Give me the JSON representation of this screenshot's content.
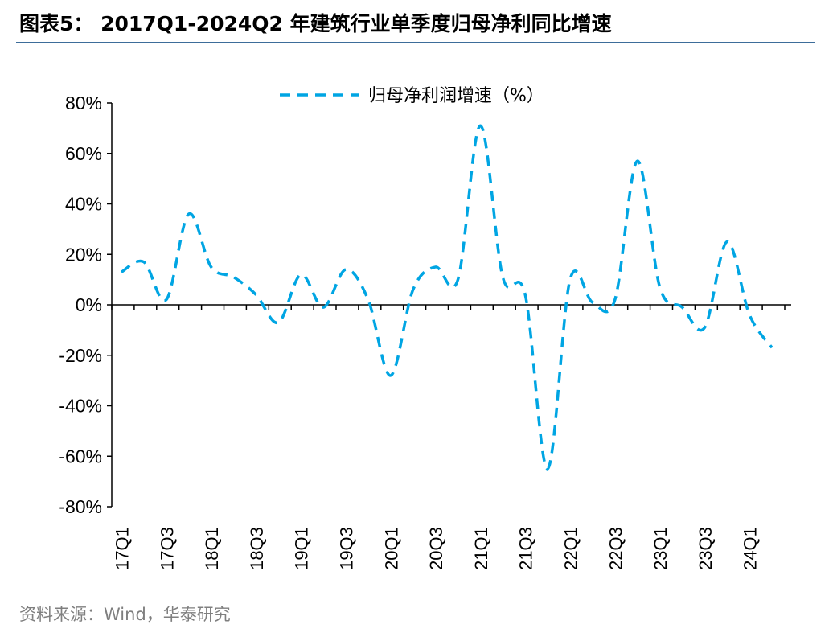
{
  "title": "图表5：  2017Q1-2024Q2 年建筑行业单季度归母净利同比增速",
  "source": "资料来源：Wind，华泰研究",
  "colors": {
    "series": "#00a5e3",
    "axis": "#000000",
    "rule": "#3d6d9a",
    "source_text": "#7f7f7f"
  },
  "chart_data": {
    "type": "line",
    "title": "",
    "xlabel": "",
    "ylabel": "",
    "ylim": [
      -80,
      80
    ],
    "y_ticks": [
      "80%",
      "60%",
      "40%",
      "20%",
      "0%",
      "-20%",
      "-40%",
      "-60%",
      "-80%"
    ],
    "y_tick_values": [
      80,
      60,
      40,
      20,
      0,
      -20,
      -40,
      -60,
      -80
    ],
    "grid": false,
    "legend": "top-center",
    "x": [
      "17Q1",
      "17Q2",
      "17Q3",
      "17Q4",
      "18Q1",
      "18Q2",
      "18Q3",
      "18Q4",
      "19Q1",
      "19Q2",
      "19Q3",
      "19Q4",
      "20Q1",
      "20Q2",
      "20Q3",
      "20Q4",
      "21Q1",
      "21Q2",
      "21Q3",
      "21Q4",
      "22Q1",
      "22Q2",
      "22Q3",
      "22Q4",
      "23Q1",
      "23Q2",
      "23Q3",
      "23Q4",
      "24Q1",
      "24Q2"
    ],
    "x_tick_labels": [
      "17Q1",
      "17Q3",
      "18Q1",
      "18Q3",
      "19Q1",
      "19Q3",
      "20Q1",
      "20Q3",
      "21Q1",
      "21Q3",
      "22Q1",
      "22Q3",
      "23Q1",
      "23Q3",
      "24Q1"
    ],
    "series": [
      {
        "name": "归母净利润增速（%）",
        "style": "dashed",
        "values": [
          13,
          17,
          2,
          36,
          15,
          11,
          4,
          -7,
          12,
          -1,
          14,
          2,
          -28,
          6,
          15,
          10,
          71,
          11,
          4,
          -65,
          10,
          1,
          2,
          57,
          7,
          -1,
          -9,
          25,
          -4,
          -17
        ]
      }
    ]
  }
}
